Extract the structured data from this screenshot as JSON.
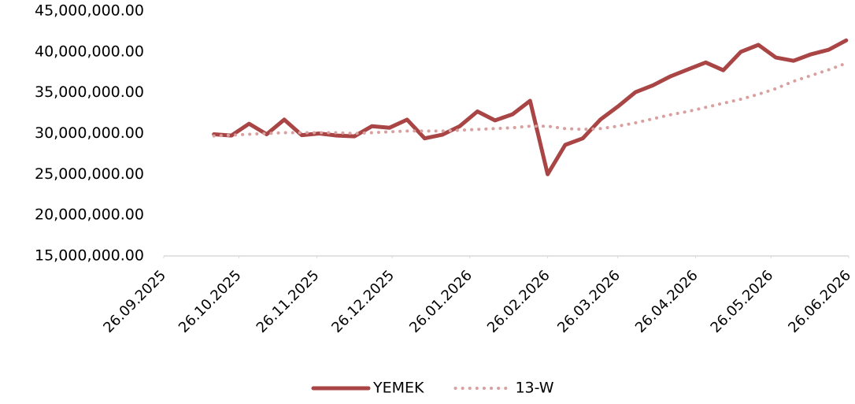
{
  "chart_data": {
    "type": "line",
    "x": [
      "2025-10-16",
      "2025-10-23",
      "2025-10-30",
      "2025-11-06",
      "2025-11-13",
      "2025-11-20",
      "2025-11-27",
      "2025-12-04",
      "2025-12-11",
      "2025-12-18",
      "2025-12-25",
      "2026-01-01",
      "2026-01-08",
      "2026-01-15",
      "2026-01-22",
      "2026-01-29",
      "2026-02-05",
      "2026-02-12",
      "2026-02-19",
      "2026-02-26",
      "2026-03-05",
      "2026-03-12",
      "2026-03-19",
      "2026-03-26",
      "2026-04-02",
      "2026-04-09",
      "2026-04-16",
      "2026-04-23",
      "2026-04-30",
      "2026-05-07",
      "2026-05-14",
      "2026-05-21",
      "2026-05-28",
      "2026-06-04",
      "2026-06-11",
      "2026-06-18",
      "2026-06-25"
    ],
    "series": [
      {
        "name": "YEMEK",
        "color": "#a94545",
        "style": "solid",
        "values": [
          29900000,
          29750000,
          31200000,
          29900000,
          31700000,
          29800000,
          30000000,
          29750000,
          29650000,
          30900000,
          30700000,
          31700000,
          29400000,
          29850000,
          30900000,
          32700000,
          31600000,
          32350000,
          34000000,
          25000000,
          28600000,
          29400000,
          31700000,
          33300000,
          35050000,
          35900000,
          37000000,
          37850000,
          38700000,
          37750000,
          40000000,
          40850000,
          39300000,
          38900000,
          39700000,
          40250000,
          41400000
        ]
      },
      {
        "name": "13-W",
        "color": "#d9a0a0",
        "style": "dotted",
        "values": [
          29700000,
          29800000,
          29900000,
          30000000,
          30100000,
          30100000,
          30100000,
          30100000,
          30000000,
          30100000,
          30200000,
          30300000,
          30300000,
          30300000,
          30400000,
          30500000,
          30600000,
          30700000,
          30900000,
          30900000,
          30600000,
          30500000,
          30600000,
          30900000,
          31300000,
          31800000,
          32300000,
          32700000,
          33200000,
          33700000,
          34200000,
          34800000,
          35500000,
          36400000,
          37100000,
          37800000,
          38600000
        ]
      }
    ],
    "xlim": [
      "2025-09-26",
      "2026-06-26"
    ],
    "xticks": [
      {
        "value": "2025-09-26",
        "label": "26.09.2025"
      },
      {
        "value": "2025-10-26",
        "label": "26.10.2025"
      },
      {
        "value": "2025-11-26",
        "label": "26.11.2025"
      },
      {
        "value": "2025-12-26",
        "label": "26.12.2025"
      },
      {
        "value": "2026-01-26",
        "label": "26.01.2026"
      },
      {
        "value": "2026-02-26",
        "label": "26.02.2026"
      },
      {
        "value": "2026-03-26",
        "label": "26.03.2026"
      },
      {
        "value": "2026-04-26",
        "label": "26.04.2026"
      },
      {
        "value": "2026-05-26",
        "label": "26.05.2026"
      },
      {
        "value": "2026-06-26",
        "label": "26.06.2026"
      }
    ],
    "ylim": [
      15000000,
      45000000
    ],
    "yticks": [
      {
        "value": 15000000,
        "label": "15,000,000.00"
      },
      {
        "value": 20000000,
        "label": "20,000,000.00"
      },
      {
        "value": 25000000,
        "label": "25,000,000.00"
      },
      {
        "value": 30000000,
        "label": "30,000,000.00"
      },
      {
        "value": 35000000,
        "label": "35,000,000.00"
      },
      {
        "value": 40000000,
        "label": "40,000,000.00"
      },
      {
        "value": 45000000,
        "label": "45,000,000.00"
      }
    ],
    "legend": "bottom"
  }
}
